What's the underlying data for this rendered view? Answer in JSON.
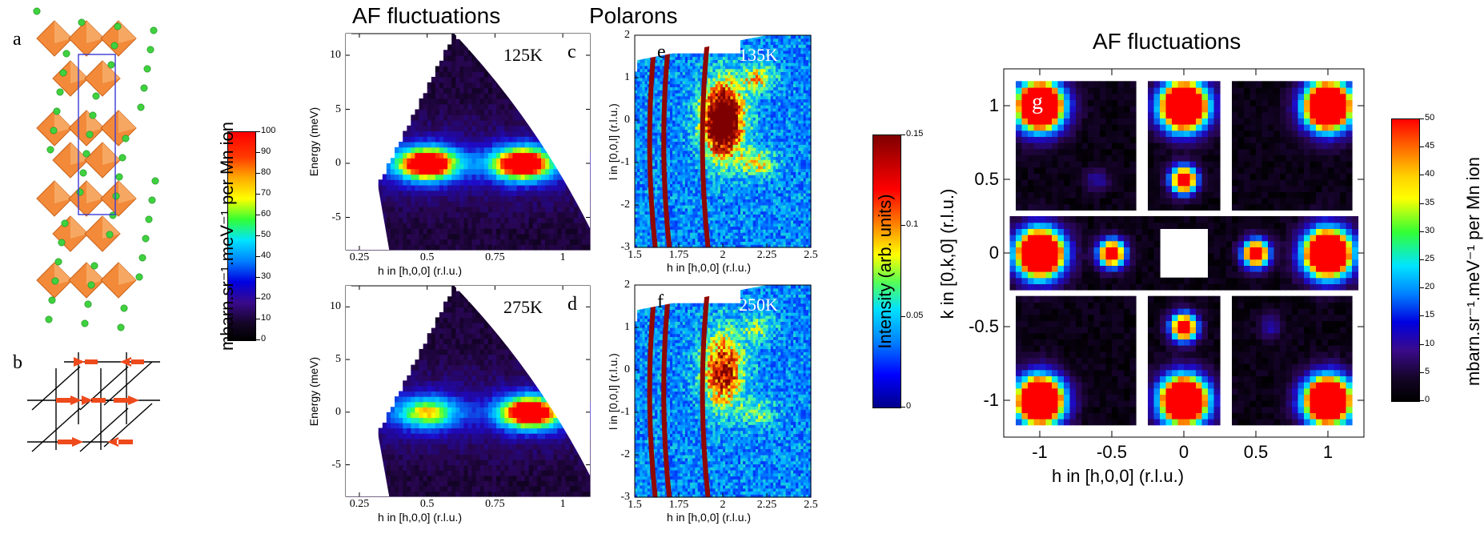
{
  "panels": {
    "a": "a",
    "b": "b",
    "c": "c",
    "d": "d",
    "e": "e",
    "f": "f",
    "g": "g"
  },
  "headings": {
    "af_left": "AF fluctuations",
    "polarons": "Polarons",
    "af_right": "AF fluctuations"
  },
  "temps": {
    "c": "125K",
    "d": "275K",
    "e": "135K",
    "f": "250K"
  },
  "axes": {
    "energy": "Energy  (meV)",
    "h_hoo": "h in [h,0,0]  (r.l.u.)",
    "l_ool": "l in [0,0,l]  (r.l.u.)",
    "k_oko": "k in [0,k,0]  (r.l.u.)",
    "h_hoo_g": "h in [h,0,0]  (r.l.u.)"
  },
  "ticks": {
    "energy": [
      "10",
      "5",
      "0",
      "-5"
    ],
    "h_cd": [
      "0.25",
      "0.5",
      "0.75",
      "1"
    ],
    "l_ef": [
      "2",
      "1",
      "0",
      "-1",
      "-2",
      "-3"
    ],
    "h_ef": [
      "1.5",
      "1.75",
      "2",
      "2.25",
      "2.5"
    ],
    "k_g": [
      "1",
      "0.5",
      "0",
      "-0.5",
      "-1"
    ],
    "h_g": [
      "-1",
      "-0.5",
      "0",
      "0.5",
      "1"
    ]
  },
  "colorbars": {
    "left": {
      "label": "mbarn.sr⁻¹.meV⁻¹ per Mn ion",
      "ticks": [
        "100",
        "90",
        "80",
        "70",
        "60",
        "50",
        "40",
        "30",
        "20",
        "10",
        "0"
      ]
    },
    "mid": {
      "label": "Intensity (arb. units)",
      "ticks": [
        "0.15",
        "0.1",
        "0.05",
        "0"
      ]
    },
    "right": {
      "label": "mbarn.sr⁻¹.meV⁻¹ per Mn ion",
      "ticks": [
        "50",
        "45",
        "40",
        "35",
        "30",
        "25",
        "20",
        "15",
        "10",
        "5",
        "0"
      ]
    }
  },
  "colors": {
    "octahedron": "#f28a3a",
    "atom": "#3fd13f",
    "spin": "#ee4a1c",
    "cell": "#3a3ad6",
    "jet_red": "#ff0000",
    "jet_dark": "#7f0000"
  },
  "chart_data": [
    {
      "type": "heatmap",
      "title": "AF fluctuations",
      "panel": "c",
      "temperature": "125K",
      "xlabel": "h in [h,0,0]  (r.l.u.)",
      "ylabel": "Energy  (meV)",
      "xlim": [
        0.2,
        1.1
      ],
      "ylim": [
        -8,
        12
      ],
      "color_scale": [
        0,
        100
      ],
      "colormap": "jet",
      "features": [
        {
          "h": 0.5,
          "E": 0,
          "intensity": 100
        },
        {
          "h": 0.85,
          "E": 0,
          "intensity": 100
        }
      ]
    },
    {
      "type": "heatmap",
      "panel": "d",
      "temperature": "275K",
      "xlabel": "h in [h,0,0]  (r.l.u.)",
      "ylabel": "Energy  (meV)",
      "xlim": [
        0.2,
        1.1
      ],
      "ylim": [
        -8,
        12
      ],
      "color_scale": [
        0,
        100
      ],
      "colormap": "jet",
      "features": [
        {
          "h": 0.5,
          "E": 0,
          "intensity": 60
        },
        {
          "h": 0.88,
          "E": 0,
          "intensity": 100
        }
      ]
    },
    {
      "type": "heatmap",
      "title": "Polarons",
      "panel": "e",
      "temperature": "135K",
      "xlabel": "h in [h,0,0]  (r.l.u.)",
      "ylabel": "l in [0,0,l]  (r.l.u.)",
      "xlim": [
        1.5,
        2.5
      ],
      "ylim": [
        -3,
        2
      ],
      "color_scale": [
        0,
        0.15
      ],
      "colormap": "jet",
      "features": [
        {
          "h": 2.0,
          "l": 0,
          "intensity": 0.15
        }
      ]
    },
    {
      "type": "heatmap",
      "panel": "f",
      "temperature": "250K",
      "xlabel": "h in [h,0,0]  (r.l.u.)",
      "ylabel": "l in [0,0,l]  (r.l.u.)",
      "xlim": [
        1.5,
        2.5
      ],
      "ylim": [
        -3,
        2
      ],
      "color_scale": [
        0,
        0.15
      ],
      "colormap": "jet",
      "features": [
        {
          "h": 2.0,
          "l": 0,
          "intensity": 0.1
        }
      ]
    },
    {
      "type": "heatmap",
      "title": "AF fluctuations",
      "panel": "g",
      "xlabel": "h in [h,0,0]  (r.l.u.)",
      "ylabel": "k in [0,k,0]  (r.l.u.)",
      "xlim": [
        -1.25,
        1.25
      ],
      "ylim": [
        -1.25,
        1.25
      ],
      "color_scale": [
        0,
        50
      ],
      "colormap": "jet",
      "peaks": [
        {
          "h": -1,
          "k": 1
        },
        {
          "h": 0,
          "k": 1
        },
        {
          "h": 1,
          "k": 1
        },
        {
          "h": -1,
          "k": 0
        },
        {
          "h": 1,
          "k": 0
        },
        {
          "h": -1,
          "k": -1
        },
        {
          "h": 0,
          "k": -1
        },
        {
          "h": 1,
          "k": -1
        },
        {
          "h": -0.5,
          "k": 0
        },
        {
          "h": 0.5,
          "k": 0
        },
        {
          "h": 0,
          "k": 0.5
        },
        {
          "h": 0,
          "k": -0.5
        }
      ]
    }
  ]
}
